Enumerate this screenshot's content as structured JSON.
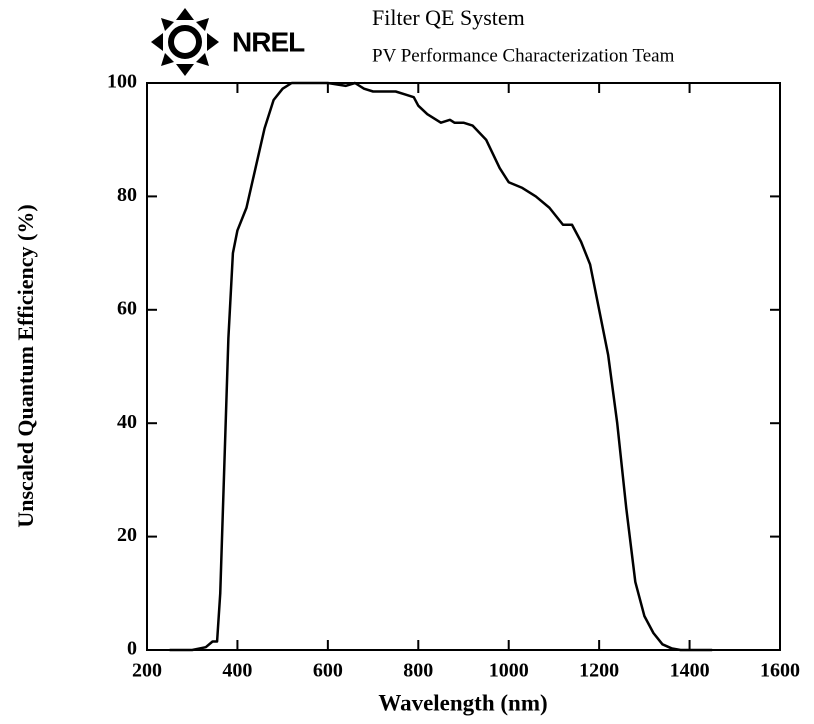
{
  "logo": "NREL",
  "chart_data": {
    "type": "line",
    "title": "Filter QE System",
    "subtitle": "PV Performance Characterization Team",
    "x_label": "Wavelength (nm)",
    "y_label": "Unscaled Quantum Efficiency (%)",
    "x": [
      250,
      300,
      330,
      345,
      355,
      362,
      370,
      380,
      390,
      400,
      420,
      440,
      460,
      480,
      500,
      520,
      550,
      600,
      640,
      660,
      680,
      700,
      750,
      770,
      790,
      800,
      820,
      850,
      870,
      880,
      900,
      920,
      950,
      980,
      1000,
      1030,
      1060,
      1090,
      1120,
      1140,
      1160,
      1180,
      1200,
      1220,
      1240,
      1260,
      1280,
      1300,
      1320,
      1340,
      1360,
      1380,
      1400,
      1450
    ],
    "series": [
      {
        "name": "QE",
        "color": "#000000",
        "values": [
          0,
          0,
          0.5,
          1.5,
          1.5,
          10,
          30,
          55,
          70,
          74,
          78,
          85,
          92,
          97,
          99,
          100,
          100,
          100,
          99.5,
          100,
          99,
          98.5,
          98.5,
          98,
          97.5,
          96,
          94.5,
          93,
          93.5,
          93,
          93,
          92.5,
          90,
          85,
          82.5,
          81.5,
          80,
          78,
          75,
          75,
          72,
          68,
          60,
          52,
          40,
          25,
          12,
          6,
          3,
          1,
          0.3,
          0,
          0,
          0
        ]
      }
    ],
    "xlim": [
      200,
      1600
    ],
    "xticks": [
      200,
      400,
      600,
      800,
      1000,
      1200,
      1400,
      1600
    ],
    "ylim": [
      0,
      100
    ],
    "yticks": [
      0,
      20,
      40,
      60,
      80,
      100
    ],
    "grid": false
  }
}
